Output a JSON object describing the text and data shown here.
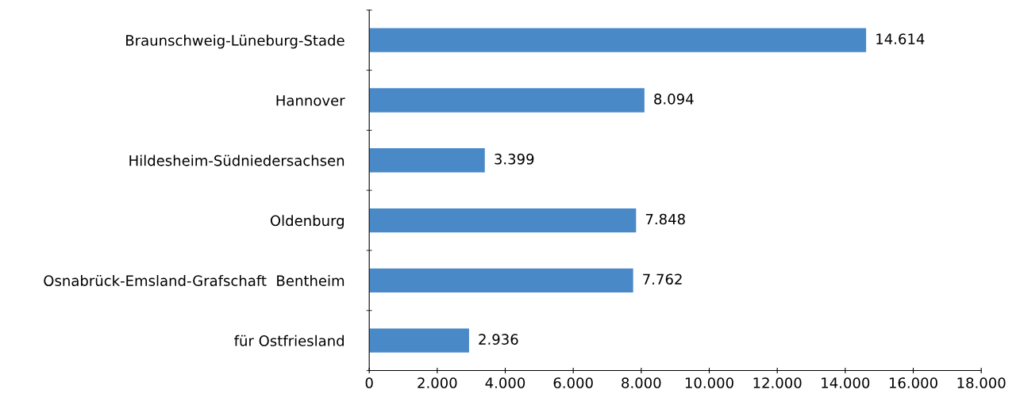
{
  "chart_data": {
    "type": "bar",
    "orientation": "horizontal",
    "categories": [
      "Braunschweig-Lüneburg-Stade",
      "Hannover",
      "Hildesheim-Südniedersachsen",
      "Oldenburg",
      "Osnabrück-Emsland-Grafschaft  Bentheim",
      "für Ostfriesland"
    ],
    "values": [
      14614,
      8094,
      3399,
      7848,
      7762,
      2936
    ],
    "value_labels": [
      "14.614",
      "8.094",
      "3.399",
      "7.848",
      "7.762",
      "2.936"
    ],
    "color": "#4a89c8",
    "xlim": [
      0,
      18000
    ],
    "xticks": [
      0,
      {
        "value": 2000,
        "label": "2.000"
      },
      {
        "value": 4000,
        "label": "4.000"
      },
      {
        "value": 6000,
        "label": "6.000"
      },
      {
        "value": 8000,
        "label": "8.000"
      },
      {
        "value": 10000,
        "label": "10.000"
      },
      {
        "value": 12000,
        "label": "12.000"
      },
      {
        "value": 14000,
        "label": "14.000"
      },
      {
        "value": 16000,
        "label": "16.000"
      },
      {
        "value": 18000,
        "label": "18.000"
      }
    ],
    "grid": false,
    "legend": false
  }
}
